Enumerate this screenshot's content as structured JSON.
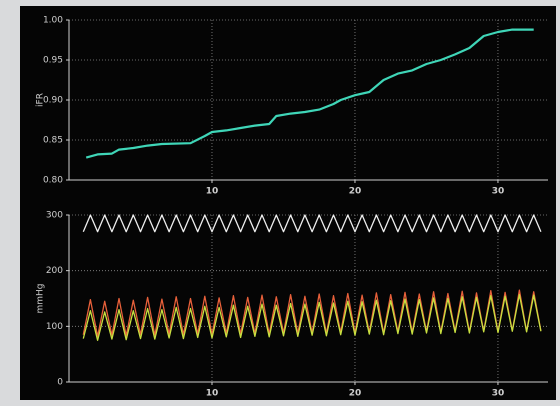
{
  "chart_data": [
    {
      "type": "line",
      "ylabel": "iFR",
      "x": [
        1.2,
        2,
        3,
        3.5,
        4.5,
        5.5,
        6.5,
        8.5,
        9.5,
        10,
        11,
        12,
        13,
        14,
        14.5,
        15.5,
        16.5,
        17.5,
        18.5,
        19,
        20,
        21,
        22,
        23,
        24,
        25,
        26,
        27,
        28,
        29,
        30,
        31,
        32.5
      ],
      "series": [
        {
          "color": "#3fd6b8",
          "values": [
            0.828,
            0.832,
            0.833,
            0.838,
            0.84,
            0.843,
            0.845,
            0.846,
            0.855,
            0.86,
            0.862,
            0.865,
            0.868,
            0.87,
            0.88,
            0.883,
            0.885,
            0.888,
            0.895,
            0.9,
            0.906,
            0.91,
            0.925,
            0.933,
            0.937,
            0.945,
            0.95,
            0.957,
            0.965,
            0.98,
            0.985,
            0.988,
            0.988
          ]
        }
      ],
      "xlim": [
        0,
        33.5
      ],
      "xticks": [
        10,
        20,
        30
      ],
      "ylim": [
        0.8,
        1.0
      ],
      "yticks": [
        {
          "value": 0.8,
          "label": "0.80"
        },
        0.85,
        {
          "value": 0.9,
          "label": "0.90"
        },
        0.95,
        {
          "value": 1.0,
          "label": "1.00"
        }
      ],
      "grid": true
    },
    {
      "type": "line",
      "ylabel": "mmHg",
      "x": [
        1,
        1.5,
        2,
        2.5,
        3,
        3.5,
        4,
        4.5,
        5,
        5.5,
        6,
        6.5,
        7,
        7.5,
        8,
        8.5,
        9,
        9.5,
        10,
        10.5,
        11,
        11.5,
        12,
        12.5,
        13,
        13.5,
        14,
        14.5,
        15,
        15.5,
        16,
        16.5,
        17,
        17.5,
        18,
        18.5,
        19,
        19.5,
        20,
        20.5,
        21,
        21.5,
        22,
        22.5,
        23,
        23.5,
        24,
        24.5,
        25,
        25.5,
        26,
        26.5,
        27,
        27.5,
        28,
        28.5,
        29,
        29.5,
        30,
        30.5,
        31,
        31.5,
        32,
        32.5,
        33
      ],
      "series": [
        {
          "color": "#eeeeee",
          "values": [
            270,
            300,
            270,
            300,
            270,
            300,
            270,
            300,
            270,
            300,
            270,
            300,
            270,
            300,
            270,
            300,
            270,
            300,
            270,
            300,
            270,
            300,
            270,
            300,
            270,
            300,
            270,
            300,
            270,
            300,
            270,
            300,
            270,
            300,
            270,
            300,
            270,
            300,
            270,
            300,
            270,
            300,
            270,
            300,
            270,
            300,
            270,
            300,
            270,
            300,
            270,
            300,
            270,
            300,
            270,
            300,
            270,
            300,
            270,
            300,
            270,
            300,
            270,
            300,
            270
          ]
        },
        {
          "color": "#e8603a",
          "values": [
            85,
            148,
            82,
            145,
            84,
            150,
            83,
            147,
            85,
            152,
            84,
            149,
            86,
            153,
            85,
            150,
            86,
            154,
            85,
            151,
            87,
            155,
            86,
            152,
            87,
            156,
            86,
            153,
            88,
            157,
            87,
            154,
            88,
            158,
            87,
            155,
            89,
            159,
            88,
            156,
            89,
            160,
            88,
            157,
            90,
            161,
            89,
            158,
            90,
            162,
            89,
            159,
            91,
            163,
            90,
            160,
            91,
            164,
            90,
            161,
            92,
            165,
            91,
            162,
            92
          ]
        },
        {
          "color": "#c8e040",
          "values": [
            78,
            128,
            75,
            126,
            77,
            130,
            76,
            128,
            78,
            132,
            77,
            130,
            79,
            134,
            78,
            132,
            80,
            136,
            79,
            134,
            81,
            138,
            80,
            136,
            82,
            140,
            81,
            138,
            83,
            141,
            82,
            140,
            84,
            143,
            83,
            142,
            85,
            145,
            84,
            144,
            86,
            147,
            85,
            146,
            87,
            149,
            86,
            148,
            88,
            151,
            87,
            150,
            89,
            153,
            88,
            152,
            90,
            155,
            89,
            154,
            91,
            157,
            90,
            156,
            91
          ]
        }
      ],
      "xlim": [
        0,
        33.5
      ],
      "xticks": [
        10,
        20,
        30
      ],
      "ylim": [
        0,
        300
      ],
      "yticks": [
        0,
        100,
        200,
        300
      ],
      "grid": true
    }
  ]
}
